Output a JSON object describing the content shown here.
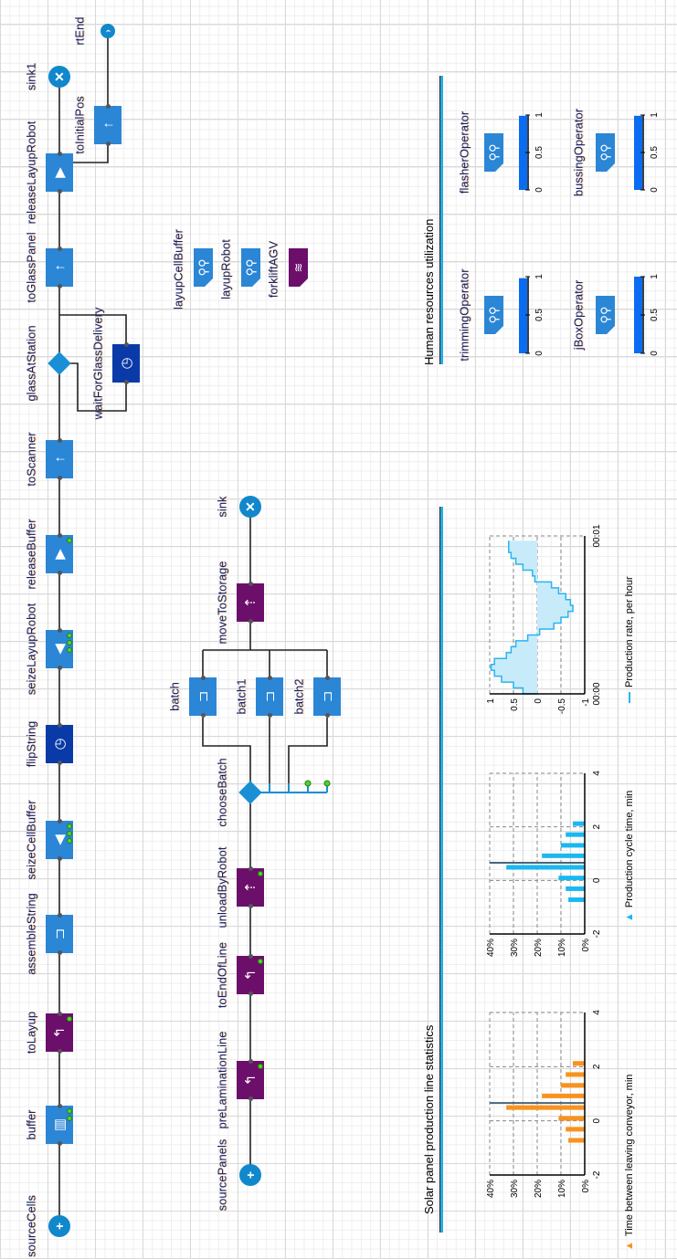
{
  "flow": {
    "blocks": [
      {
        "label": "sourceCells",
        "type": "source"
      },
      {
        "label": "buffer",
        "type": "queue"
      },
      {
        "label": "toLayup",
        "type": "move"
      },
      {
        "label": "assembleString",
        "type": "batch"
      },
      {
        "label": "seizeCellBuffer",
        "type": "seize"
      },
      {
        "label": "flipString",
        "type": "delay"
      },
      {
        "label": "seizeLayupRobot",
        "type": "seize"
      },
      {
        "label": "releaseBuffer",
        "type": "release"
      },
      {
        "label": "toScanner",
        "type": "moveTo"
      },
      {
        "label": "glassAtStation",
        "type": "select"
      },
      {
        "label": "toGlassPanel",
        "type": "moveTo"
      },
      {
        "label": "releaseLayupRobot",
        "type": "release"
      },
      {
        "label": "sink1",
        "type": "sink"
      },
      {
        "label": "waitForGlassDelivery",
        "type": "delay"
      },
      {
        "label": "toInitialPos",
        "type": "moveTo"
      },
      {
        "label": "rtEnd",
        "type": "end"
      },
      {
        "label": "sourcePanels",
        "type": "source"
      },
      {
        "label": "preLaminationLine",
        "type": "move"
      },
      {
        "label": "toEndOfLine",
        "type": "move"
      },
      {
        "label": "unloadByRobot",
        "type": "transport"
      },
      {
        "label": "chooseBatch",
        "type": "select"
      },
      {
        "label": "batch",
        "type": "batch"
      },
      {
        "label": "batch1",
        "type": "batch"
      },
      {
        "label": "batch2",
        "type": "batch"
      },
      {
        "label": "moveToStorage",
        "type": "transport"
      },
      {
        "label": "sink",
        "type": "sink"
      }
    ]
  },
  "resources": [
    {
      "label": "layupCellBuffer",
      "type": "resource-pool"
    },
    {
      "label": "layupRobot",
      "type": "resource-pool"
    },
    {
      "label": "forkliftAGV",
      "type": "agv-fleet"
    }
  ],
  "stats": {
    "title": "Solar panel production line statistics"
  },
  "hr": {
    "title": "Human resources utilization",
    "axis_ticks": [
      "0",
      "0.5",
      "1"
    ],
    "operators": [
      {
        "label": "trimmingOperator",
        "utilization": 0.98
      },
      {
        "label": "flasherOperator",
        "utilization": 0.99
      },
      {
        "label": "jBoxOperator",
        "utilization": 1.0
      },
      {
        "label": "bussingOperator",
        "utilization": 0.99
      }
    ]
  },
  "colors": {
    "block_blue": "#2b86d6",
    "block_purple": "#6b0f6b",
    "delay_blue": "#0a3aa8",
    "source_sink": "#1188cc",
    "hr_bar": "#0a6cf0",
    "hist1": "#f7931e",
    "hist2": "#1ab8f0",
    "plot_line": "#2ab4f0",
    "plot_fill": "#c8ebfa"
  },
  "chart_data": [
    {
      "type": "bar",
      "legend": "Time between leaving conveyor, min",
      "x": [
        -0.72,
        -0.31,
        0.09,
        0.49,
        0.92,
        1.31,
        1.71,
        2.12
      ],
      "values": [
        6.9,
        8,
        11,
        33,
        18,
        10,
        8,
        5
      ],
      "mean": 0.66,
      "xlim": [
        -2,
        4
      ],
      "ylim": [
        0,
        40
      ],
      "xticks": [
        "-2",
        "0",
        "2",
        "4"
      ],
      "yticks": [
        "0%",
        "10%",
        "20%",
        "30%",
        "40%"
      ],
      "grid": true
    },
    {
      "type": "bar",
      "legend": "Production cycle time, min",
      "x": [
        -0.72,
        -0.31,
        0.09,
        0.49,
        0.92,
        1.31,
        1.71,
        2.12
      ],
      "values": [
        6.9,
        8,
        11,
        33,
        18,
        10,
        8,
        5
      ],
      "mean": 0.66,
      "xlim": [
        -2,
        4
      ],
      "ylim": [
        0,
        40
      ],
      "xticks": [
        "-2",
        "0",
        "2",
        "4"
      ],
      "yticks": [
        "0%",
        "10%",
        "20%",
        "30%",
        "40%"
      ],
      "grid": true
    },
    {
      "type": "area",
      "legend": "Production rate, per hour",
      "values": [
        0.3,
        0.5,
        0.75,
        0.9,
        0.97,
        0.9,
        0.65,
        0.55,
        0.45,
        0.2,
        -0.05,
        -0.35,
        -0.5,
        -0.65,
        -0.75,
        -0.7,
        -0.6,
        -0.45,
        -0.3,
        0.05,
        0.1,
        0.3,
        0.45,
        0.55,
        0.6,
        0.6
      ],
      "ylim": [
        -1,
        1
      ],
      "xticks": [
        "00:00",
        "00:01"
      ],
      "yticks": [
        "-1",
        "-0.5",
        "0",
        "0.5",
        "1"
      ],
      "grid": true
    }
  ]
}
